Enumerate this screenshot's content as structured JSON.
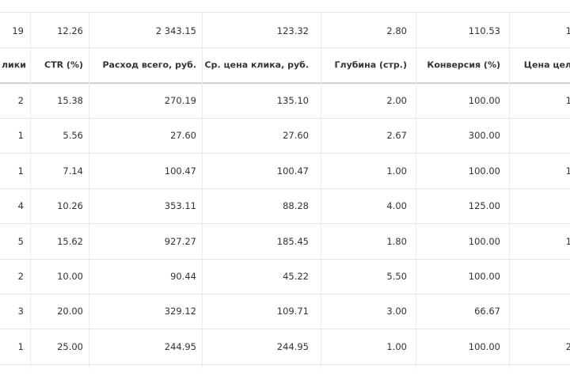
{
  "table": {
    "totals": [
      "19",
      "12.26",
      "2 343.15",
      "123.32",
      "2.80",
      "110.53",
      "1"
    ],
    "header": [
      "лики",
      "CTR (%)",
      "Расход всего, руб.",
      "Ср. цена клика, руб.",
      "Глубина (стр.)",
      "Конверсия (%)",
      "Цена цел"
    ],
    "rows": [
      [
        "2",
        "15.38",
        "270.19",
        "135.10",
        "2.00",
        "100.00",
        "1"
      ],
      [
        "1",
        "5.56",
        "27.60",
        "27.60",
        "2.67",
        "300.00",
        null
      ],
      [
        "1",
        "7.14",
        "100.47",
        "100.47",
        "1.00",
        "100.00",
        "1"
      ],
      [
        "4",
        "10.26",
        "353.11",
        "88.28",
        "4.00",
        "125.00",
        null
      ],
      [
        "5",
        "15.62",
        "927.27",
        "185.45",
        "1.80",
        "100.00",
        "1"
      ],
      [
        "2",
        "10.00",
        "90.44",
        "45.22",
        "5.50",
        "100.00",
        null
      ],
      [
        "3",
        "20.00",
        "329.12",
        "109.71",
        "3.00",
        "66.67",
        null
      ],
      [
        "1",
        "25.00",
        "244.95",
        "244.95",
        "1.00",
        "100.00",
        "2"
      ]
    ]
  }
}
